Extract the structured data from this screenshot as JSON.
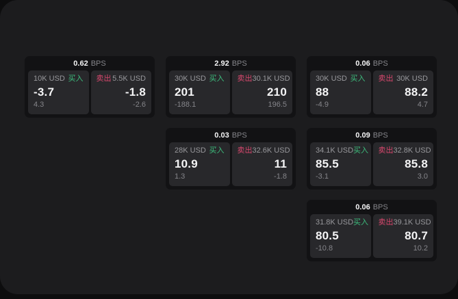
{
  "labels": {
    "buy": "买入",
    "sell": "卖出",
    "bps_unit": "BPS"
  },
  "colors": {
    "page_bg": "#1c1c1e",
    "outer_bg": "#0d0d0e",
    "card_bg": "#121214",
    "panel_bg": "#28282b",
    "buy_green": "#3dbd7d",
    "sell_red": "#d9486e",
    "value_white": "#f4f4f5",
    "muted_gray": "#85858a"
  },
  "cards": [
    {
      "bps": "0.62",
      "buy": {
        "amount": "10K USD",
        "value": "-3.7",
        "sub": "4.3"
      },
      "sell": {
        "amount": "5.5K USD",
        "value": "-1.8",
        "sub": "-2.6"
      }
    },
    {
      "bps": "2.92",
      "buy": {
        "amount": "30K USD",
        "value": "201",
        "sub": "-188.1"
      },
      "sell": {
        "amount": "30.1K USD",
        "value": "210",
        "sub": "196.5"
      }
    },
    {
      "bps": "0.06",
      "buy": {
        "amount": "30K USD",
        "value": "88",
        "sub": "-4.9"
      },
      "sell": {
        "amount": "30K USD",
        "value": "88.2",
        "sub": "4.7"
      }
    },
    {
      "bps": "0.03",
      "buy": {
        "amount": "28K USD",
        "value": "10.9",
        "sub": "1.3"
      },
      "sell": {
        "amount": "32.6K USD",
        "value": "11",
        "sub": "-1.8"
      }
    },
    {
      "bps": "0.09",
      "buy": {
        "amount": "34.1K USD",
        "value": "85.5",
        "sub": "-3.1"
      },
      "sell": {
        "amount": "32.8K USD",
        "value": "85.8",
        "sub": "3.0"
      }
    },
    {
      "bps": "0.06",
      "buy": {
        "amount": "31.8K USD",
        "value": "80.5",
        "sub": "-10.8"
      },
      "sell": {
        "amount": "39.1K USD",
        "value": "80.7",
        "sub": "10.2"
      }
    }
  ]
}
